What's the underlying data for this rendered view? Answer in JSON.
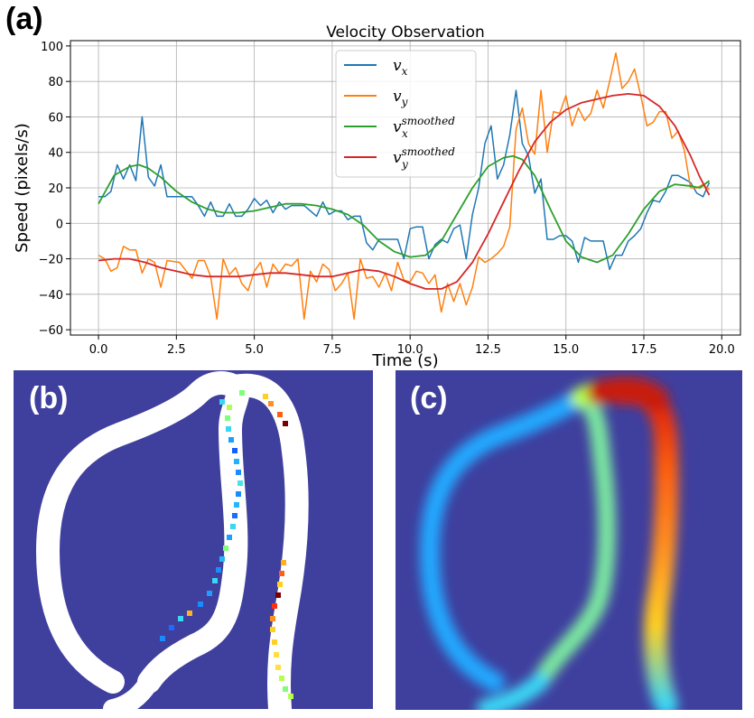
{
  "panel_labels": {
    "a": "(a)",
    "b": "(b)",
    "c": "(c)"
  },
  "colors": {
    "vx": "#1f77b4",
    "vy": "#ff7f0e",
    "vx_smoothed": "#2ca02c",
    "vy_smoothed": "#d62728",
    "map_background": "#3f3f9e",
    "vessel_white": "#ffffff"
  },
  "chart_data": [
    {
      "type": "line",
      "title": "Velocity Observation",
      "xlabel": "Time (s)",
      "ylabel": "Speed (pixels/s)",
      "xlim": [
        -0.9,
        20.6
      ],
      "ylim": [
        -63,
        103
      ],
      "xticks": [
        0.0,
        2.5,
        5.0,
        7.5,
        10.0,
        12.5,
        15.0,
        17.5,
        20.0
      ],
      "xtick_labels": [
        "0.0",
        "2.5",
        "5.0",
        "7.5",
        "10.0",
        "12.5",
        "15.0",
        "17.5",
        "20.0"
      ],
      "yticks": [
        -60,
        -40,
        -20,
        0,
        20,
        40,
        60,
        80,
        100
      ],
      "ytick_labels": [
        "−60",
        "−40",
        "−20",
        "0",
        "20",
        "40",
        "60",
        "80",
        "100"
      ],
      "grid": true,
      "legend_position": "top-center",
      "series": [
        {
          "name": "vx",
          "label_base": "v",
          "label_sub": "x",
          "label_sup": "",
          "color_key": "vx",
          "x": [
            0.0,
            0.2,
            0.4,
            0.6,
            0.8,
            1.0,
            1.2,
            1.4,
            1.6,
            1.8,
            2.0,
            2.2,
            2.6,
            3.0,
            3.2,
            3.4,
            3.6,
            3.8,
            4.0,
            4.2,
            4.4,
            4.6,
            4.8,
            5.0,
            5.2,
            5.4,
            5.6,
            5.8,
            6.0,
            6.2,
            6.4,
            6.6,
            6.8,
            7.0,
            7.2,
            7.4,
            7.6,
            7.8,
            8.0,
            8.2,
            8.4,
            8.6,
            8.8,
            9.0,
            9.2,
            9.4,
            9.6,
            9.8,
            10.0,
            10.2,
            10.4,
            10.6,
            10.8,
            11.0,
            11.2,
            11.4,
            11.6,
            11.8,
            12.0,
            12.2,
            12.4,
            12.6,
            12.8,
            13.0,
            13.2,
            13.4,
            13.6,
            13.8,
            14.0,
            14.2,
            14.4,
            14.6,
            14.8,
            15.0,
            15.2,
            15.4,
            15.6,
            15.8,
            16.0,
            16.2,
            16.4,
            16.6,
            16.8,
            17.0,
            17.2,
            17.4,
            17.6,
            17.8,
            18.0,
            18.2,
            18.4,
            18.6,
            18.8,
            19.0,
            19.2,
            19.4,
            19.6
          ],
          "y": [
            15,
            15,
            18,
            33,
            25,
            33,
            24,
            60,
            26,
            21,
            33,
            15,
            15,
            15,
            10,
            4,
            12,
            4,
            4,
            11,
            4,
            4,
            8,
            14,
            10,
            13,
            6,
            12,
            8,
            10,
            10,
            10,
            7,
            4,
            12,
            5,
            7,
            7,
            2,
            4,
            4,
            -11,
            -15,
            -9,
            -9,
            -9,
            -9,
            -20,
            -3,
            -2,
            -2,
            -20,
            -12,
            -9,
            -11,
            -3,
            -1,
            -20,
            5,
            20,
            45,
            55,
            25,
            33,
            50,
            75,
            45,
            38,
            17,
            25,
            -9,
            -9,
            -7,
            -7,
            -10,
            -22,
            -8,
            -10,
            -10,
            -10,
            -26,
            -18,
            -18,
            -10,
            -7,
            -3,
            6,
            13,
            12,
            18,
            27,
            27,
            25,
            23,
            17,
            15,
            23
          ]
        },
        {
          "name": "vy",
          "label_base": "v",
          "label_sub": "y",
          "label_sup": "",
          "color_key": "vy",
          "x": [
            0.0,
            0.2,
            0.4,
            0.6,
            0.8,
            1.0,
            1.2,
            1.4,
            1.6,
            1.8,
            2.0,
            2.2,
            2.6,
            3.0,
            3.2,
            3.4,
            3.6,
            3.8,
            4.0,
            4.2,
            4.4,
            4.6,
            4.8,
            5.0,
            5.2,
            5.4,
            5.6,
            5.8,
            6.0,
            6.2,
            6.4,
            6.6,
            6.8,
            7.0,
            7.2,
            7.4,
            7.6,
            7.8,
            8.0,
            8.2,
            8.4,
            8.6,
            8.8,
            9.0,
            9.2,
            9.4,
            9.6,
            9.8,
            10.0,
            10.2,
            10.4,
            10.6,
            10.8,
            11.0,
            11.2,
            11.4,
            11.6,
            11.8,
            12.0,
            12.2,
            12.4,
            12.6,
            12.8,
            13.0,
            13.2,
            13.4,
            13.6,
            13.8,
            14.0,
            14.2,
            14.4,
            14.6,
            14.8,
            15.0,
            15.2,
            15.4,
            15.6,
            15.8,
            16.0,
            16.2,
            16.4,
            16.6,
            16.8,
            17.0,
            17.2,
            17.4,
            17.6,
            17.8,
            18.0,
            18.2,
            18.4,
            18.6,
            18.8,
            19.0,
            19.2,
            19.4,
            19.6
          ],
          "y": [
            -18,
            -20,
            -27,
            -25,
            -13,
            -15,
            -15,
            -28,
            -20,
            -22,
            -36,
            -21,
            -22,
            -31,
            -21,
            -21,
            -30,
            -54,
            -20,
            -29,
            -25,
            -34,
            -38,
            -27,
            -22,
            -36,
            -23,
            -28,
            -23,
            -24,
            -20,
            -54,
            -27,
            -33,
            -23,
            -26,
            -38,
            -34,
            -28,
            -54,
            -20,
            -31,
            -30,
            -36,
            -28,
            -38,
            -22,
            -32,
            -33,
            -27,
            -28,
            -34,
            -29,
            -50,
            -34,
            -44,
            -34,
            -46,
            -36,
            -19,
            -22,
            -20,
            -17,
            -13,
            -2,
            53,
            65,
            45,
            39,
            75,
            40,
            63,
            62,
            72,
            55,
            65,
            58,
            62,
            75,
            65,
            80,
            96,
            76,
            80,
            87,
            72,
            55,
            57,
            63,
            63,
            48,
            52,
            41,
            20,
            20,
            22,
            19
          ]
        },
        {
          "name": "vx_smoothed",
          "label_base": "v",
          "label_sub": "x",
          "label_sup": "smoothed",
          "color_key": "vx_smoothed",
          "x": [
            0.0,
            0.5,
            1.0,
            1.3,
            1.6,
            2.0,
            2.5,
            3.0,
            3.5,
            4.0,
            4.5,
            5.0,
            5.5,
            6.0,
            6.5,
            7.0,
            7.5,
            8.0,
            8.5,
            9.0,
            9.5,
            10.0,
            10.5,
            11.0,
            11.5,
            12.0,
            12.5,
            13.0,
            13.3,
            13.6,
            14.0,
            14.5,
            15.0,
            15.5,
            16.0,
            16.5,
            17.0,
            17.5,
            18.0,
            18.5,
            19.0,
            19.3,
            19.6
          ],
          "y": [
            11,
            27,
            32,
            33,
            31,
            26,
            18,
            12,
            8,
            6,
            6,
            7,
            9,
            11,
            11,
            10,
            8,
            5,
            -1,
            -10,
            -16,
            -19,
            -18,
            -10,
            5,
            20,
            32,
            37,
            38,
            36,
            27,
            8,
            -10,
            -19,
            -22,
            -18,
            -6,
            8,
            18,
            22,
            21,
            20,
            24
          ]
        },
        {
          "name": "vy_smoothed",
          "label_base": "v",
          "label_sub": "y",
          "label_sup": "smoothed",
          "color_key": "vy_smoothed",
          "x": [
            0.0,
            0.5,
            1.0,
            1.5,
            2.0,
            2.5,
            3.0,
            3.5,
            4.0,
            4.5,
            5.0,
            5.5,
            6.0,
            6.5,
            7.0,
            7.5,
            8.0,
            8.5,
            9.0,
            9.5,
            10.0,
            10.5,
            11.0,
            11.5,
            12.0,
            12.5,
            13.0,
            13.5,
            14.0,
            14.5,
            15.0,
            15.5,
            16.0,
            16.5,
            17.0,
            17.5,
            18.0,
            18.5,
            19.0,
            19.3,
            19.6
          ],
          "y": [
            -21,
            -20,
            -20,
            -22,
            -25,
            -27,
            -29,
            -30,
            -30,
            -30,
            -29,
            -28,
            -28,
            -29,
            -30,
            -30,
            -28,
            -26,
            -27,
            -30,
            -34,
            -37,
            -37,
            -33,
            -22,
            -6,
            12,
            30,
            46,
            57,
            64,
            68,
            70,
            72,
            73,
            72,
            66,
            55,
            38,
            26,
            16
          ]
        }
      ]
    },
    {
      "type": "heatmap",
      "panel": "b",
      "description_kind": "vessel segmentation with velocity-colored tracked points",
      "colormap": "jet"
    },
    {
      "type": "heatmap",
      "panel": "c",
      "description_kind": "smoothed velocity field along vessel",
      "colormap": "jet"
    }
  ]
}
